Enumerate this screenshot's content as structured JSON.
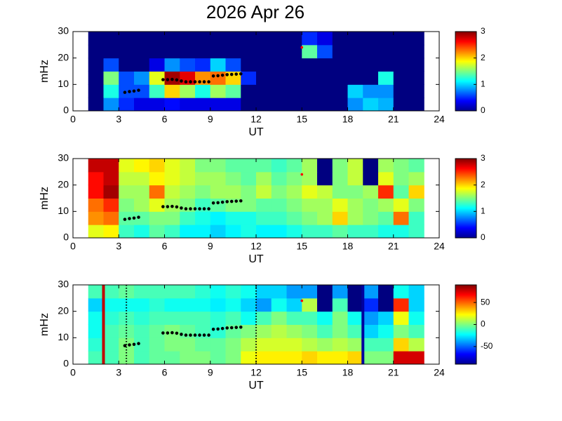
{
  "chart_data": [
    {
      "type": "heatmap",
      "title": "2026 Apr 26",
      "xlabel": "UT",
      "ylabel": "mHz",
      "xlim": [
        0,
        24
      ],
      "xticks": [
        0,
        3,
        6,
        9,
        12,
        15,
        18,
        21,
        24
      ],
      "ylim": [
        0,
        30
      ],
      "yticks": [
        0,
        10,
        20,
        30
      ],
      "x_bins": [
        1,
        2,
        3,
        4,
        5,
        6,
        7,
        8,
        9,
        10,
        11,
        12,
        13,
        14,
        15,
        16,
        17,
        18,
        19,
        20,
        21,
        22,
        23
      ],
      "y_bins": [
        0,
        5,
        10,
        15,
        20,
        25,
        30
      ],
      "colormap": "jet",
      "clim": [
        0,
        3
      ],
      "cticks": [
        0,
        1,
        2,
        3
      ],
      "z": [
        [
          0,
          0.8,
          0.5,
          0.3,
          0.3,
          0.4,
          0.3,
          0.3,
          0.3,
          0.3,
          0,
          0,
          0,
          0,
          0,
          0,
          0,
          0.8,
          1.0,
          0.9,
          0,
          0
        ],
        [
          0,
          1.2,
          0.6,
          0.6,
          1.3,
          2.0,
          1.6,
          1.2,
          1.6,
          1.4,
          0,
          0,
          0,
          0,
          0,
          0,
          0,
          1.0,
          0.8,
          0.8,
          0,
          0
        ],
        [
          0,
          1.5,
          0.6,
          0.8,
          1.8,
          2.9,
          2.7,
          2.2,
          2.3,
          2.0,
          0.5,
          0,
          0,
          0,
          0,
          0,
          0,
          0,
          0,
          1.2,
          0,
          0
        ],
        [
          0,
          0.6,
          0,
          0,
          0.3,
          0.8,
          0.6,
          0.5,
          1.0,
          0.6,
          0,
          0,
          0,
          0,
          0,
          0,
          0,
          0,
          0,
          0,
          0,
          0
        ],
        [
          0,
          0,
          0,
          0,
          0,
          0,
          0,
          0,
          0,
          0,
          0,
          0,
          0,
          0,
          1.4,
          0.6,
          0,
          0,
          0,
          0,
          0,
          0
        ],
        [
          0,
          0,
          0,
          0,
          0,
          0,
          0,
          0,
          0,
          0,
          0,
          0,
          0,
          0,
          0.5,
          0.3,
          0,
          0,
          0,
          0,
          0,
          0
        ]
      ],
      "trace": {
        "color": "#000000",
        "x": [
          3.4,
          3.7,
          4.0,
          4.3,
          5.9,
          6.2,
          6.5,
          6.8,
          7.1,
          7.4,
          7.7,
          8.0,
          8.3,
          8.6,
          8.9,
          9.2,
          9.5,
          9.8,
          10.1,
          10.4,
          10.7,
          11.0
        ],
        "y": [
          7,
          7.3,
          7.5,
          7.8,
          11.8,
          11.8,
          11.9,
          11.7,
          11.3,
          11.0,
          11.0,
          11.0,
          11.0,
          11.0,
          11.0,
          13.2,
          13.3,
          13.5,
          13.7,
          13.8,
          13.9,
          14.0
        ]
      },
      "marker": {
        "x": 15,
        "y": 24,
        "color": "#ff0000"
      }
    },
    {
      "type": "heatmap",
      "xlabel": "UT",
      "ylabel": "mHz",
      "xlim": [
        0,
        24
      ],
      "xticks": [
        0,
        3,
        6,
        9,
        12,
        15,
        18,
        21,
        24
      ],
      "ylim": [
        0,
        30
      ],
      "yticks": [
        0,
        10,
        20,
        30
      ],
      "x_bins": [
        1,
        2,
        3,
        4,
        5,
        6,
        7,
        8,
        9,
        10,
        11,
        12,
        13,
        14,
        15,
        16,
        17,
        18,
        19,
        20,
        21,
        22,
        23
      ],
      "y_bins": [
        0,
        5,
        10,
        15,
        20,
        25,
        30
      ],
      "colormap": "jet",
      "clim": [
        0,
        3
      ],
      "cticks": [
        0,
        1,
        2,
        3
      ],
      "z": [
        [
          1.8,
          1.9,
          1.3,
          1.2,
          1.4,
          1.3,
          1.1,
          1.1,
          1.0,
          1.1,
          1.2,
          1.1,
          1.1,
          1.2,
          1.3,
          1.3,
          1.4,
          1.3,
          1.3,
          1.2,
          1.2,
          1.3
        ],
        [
          2.2,
          2.3,
          1.4,
          1.4,
          1.5,
          1.5,
          1.3,
          1.2,
          1.1,
          1.2,
          1.2,
          1.3,
          1.3,
          1.4,
          1.5,
          1.6,
          2.0,
          1.6,
          1.5,
          1.4,
          2.3,
          1.3
        ],
        [
          2.3,
          2.5,
          1.5,
          1.6,
          1.8,
          1.6,
          1.5,
          1.3,
          1.4,
          1.5,
          1.5,
          1.4,
          1.4,
          1.5,
          1.6,
          1.6,
          1.8,
          1.6,
          1.5,
          1.6,
          1.8,
          1.5
        ],
        [
          2.6,
          2.9,
          1.6,
          1.6,
          2.3,
          1.7,
          1.6,
          1.5,
          1.6,
          1.6,
          1.5,
          1.7,
          1.5,
          1.6,
          1.8,
          1.7,
          1.5,
          1.5,
          1.6,
          2.5,
          1.4,
          2.0
        ],
        [
          2.6,
          2.8,
          1.7,
          1.7,
          1.9,
          1.8,
          1.7,
          1.6,
          1.6,
          1.5,
          1.4,
          1.6,
          1.4,
          1.5,
          1.6,
          0,
          1.5,
          1.7,
          0,
          1.8,
          1.5,
          1.6
        ],
        [
          2.8,
          2.8,
          1.8,
          1.9,
          2.0,
          1.8,
          1.7,
          1.5,
          1.5,
          1.4,
          1.4,
          1.4,
          1.3,
          1.4,
          1.6,
          0,
          1.5,
          1.7,
          0,
          1.6,
          1.5,
          1.4
        ]
      ],
      "trace": {
        "color": "#000000",
        "x": [
          3.4,
          3.7,
          4.0,
          4.3,
          5.9,
          6.2,
          6.5,
          6.8,
          7.1,
          7.4,
          7.7,
          8.0,
          8.3,
          8.6,
          8.9,
          9.2,
          9.5,
          9.8,
          10.1,
          10.4,
          10.7,
          11.0
        ],
        "y": [
          7,
          7.3,
          7.5,
          7.8,
          11.8,
          11.8,
          11.9,
          11.7,
          11.3,
          11.0,
          11.0,
          11.0,
          11.0,
          11.0,
          11.0,
          13.2,
          13.3,
          13.5,
          13.7,
          13.8,
          13.9,
          14.0
        ]
      },
      "marker": {
        "x": 15,
        "y": 24,
        "color": "#ff0000"
      }
    },
    {
      "type": "heatmap",
      "xlabel": "UT",
      "ylabel": "mHz",
      "xlim": [
        0,
        24
      ],
      "xticks": [
        0,
        3,
        6,
        9,
        12,
        15,
        18,
        21,
        24
      ],
      "ylim": [
        0,
        30
      ],
      "yticks": [
        0,
        10,
        20,
        30
      ],
      "x_bins": [
        1,
        2,
        3,
        4,
        5,
        6,
        7,
        8,
        9,
        10,
        11,
        12,
        13,
        14,
        15,
        16,
        17,
        18,
        19,
        20,
        21,
        22,
        23
      ],
      "y_bins": [
        0,
        5,
        10,
        15,
        20,
        25,
        30
      ],
      "colormap": "jet",
      "clim": [
        -90,
        90
      ],
      "cticks": [
        -50,
        0,
        50
      ],
      "z": [
        [
          -10,
          -10,
          0,
          -10,
          -5,
          -5,
          0,
          0,
          -5,
          0,
          20,
          25,
          25,
          25,
          30,
          25,
          25,
          30,
          0,
          0,
          75,
          75
        ],
        [
          -15,
          -10,
          0,
          -10,
          -5,
          0,
          0,
          -5,
          -5,
          0,
          10,
          15,
          15,
          15,
          10,
          5,
          10,
          5,
          -10,
          -10,
          30,
          10
        ],
        [
          -20,
          -10,
          -5,
          -10,
          -5,
          0,
          -5,
          -10,
          -15,
          -5,
          0,
          5,
          10,
          5,
          0,
          -10,
          0,
          -10,
          -30,
          -20,
          0,
          -10
        ],
        [
          -20,
          -15,
          -10,
          -15,
          -10,
          -10,
          -10,
          -10,
          -15,
          -10,
          -20,
          -10,
          0,
          -10,
          -10,
          -20,
          0,
          -20,
          -40,
          -30,
          20,
          -20
        ],
        [
          -30,
          -20,
          -20,
          -20,
          -15,
          -20,
          -20,
          -20,
          -25,
          -20,
          -30,
          -40,
          -20,
          -30,
          10,
          -90,
          -10,
          -90,
          -60,
          -90,
          60,
          -30
        ],
        [
          -10,
          -10,
          -5,
          -10,
          -10,
          -10,
          -10,
          -15,
          -20,
          -15,
          -20,
          -30,
          -30,
          -40,
          -40,
          -90,
          -40,
          -90,
          -40,
          -90,
          -20,
          -30
        ]
      ],
      "trace": {
        "color": "#000000",
        "x": [
          3.4,
          3.7,
          4.0,
          4.3,
          5.9,
          6.2,
          6.5,
          6.8,
          7.1,
          7.4,
          7.7,
          8.0,
          8.3,
          8.6,
          8.9,
          9.2,
          9.5,
          9.8,
          10.1,
          10.4,
          10.7,
          11.0
        ],
        "y": [
          7,
          7.3,
          7.5,
          7.8,
          11.8,
          11.8,
          11.9,
          11.7,
          11.3,
          11.0,
          11.0,
          11.0,
          11.0,
          11.0,
          11.0,
          13.2,
          13.3,
          13.5,
          13.7,
          13.8,
          13.9,
          14.0
        ]
      },
      "marker": {
        "x": 15,
        "y": 24,
        "color": "#ff0000"
      },
      "vlines": [
        {
          "x": 2,
          "color": "#c00000",
          "dashed": false
        },
        {
          "x": 3.5,
          "color": "#000000",
          "dashed": true
        },
        {
          "x": 12,
          "color": "#000000",
          "dashed": true
        },
        {
          "x": 19,
          "color": "#00009f",
          "dashed": false
        }
      ]
    }
  ]
}
